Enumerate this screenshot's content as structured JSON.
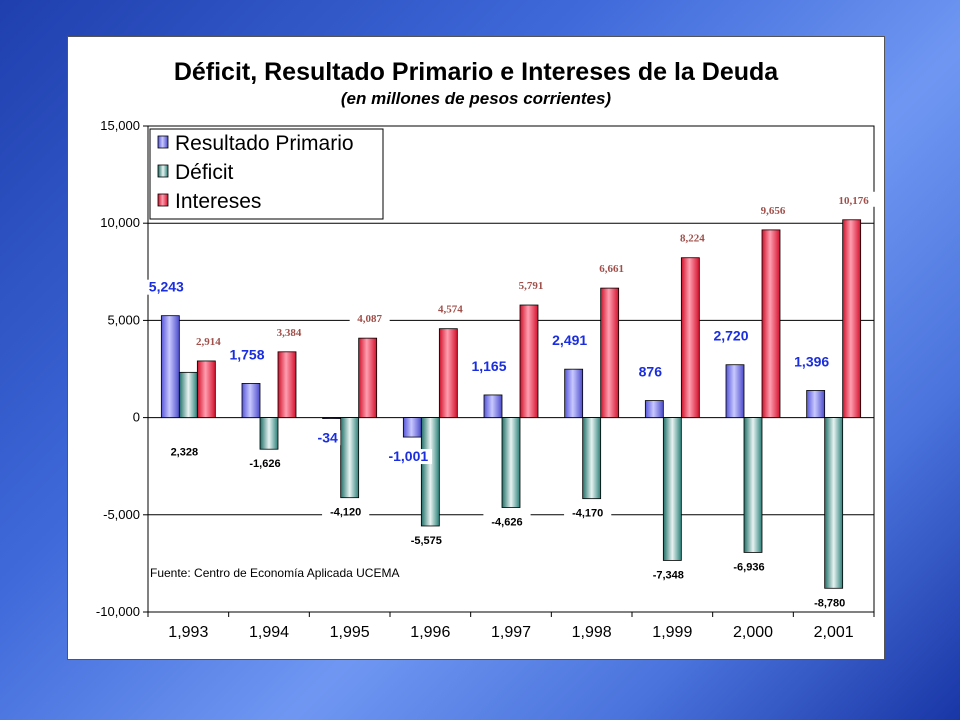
{
  "colors": {
    "resultado_primario": "#7c7cf0",
    "deficit": "#2f8f88",
    "intereses": "#ee1f3a"
  },
  "chart_data": {
    "type": "bar",
    "title": "Déficit, Resultado Primario e Intereses de la Deuda",
    "subtitle": "(en millones de pesos corrientes)",
    "categories": [
      "1,993",
      "1,994",
      "1,995",
      "1,996",
      "1,997",
      "1,998",
      "1,999",
      "2,000",
      "2,001"
    ],
    "series": [
      {
        "name": "Resultado Primario",
        "values": [
          5243,
          1758,
          -34,
          -1001,
          1165,
          2491,
          876,
          2720,
          1396
        ],
        "labels": [
          "5,243",
          "1,758",
          "-34",
          "-1,001",
          "1,165",
          "2,491",
          "876",
          "2,720",
          "1,396"
        ]
      },
      {
        "name": "Déficit",
        "values": [
          2328,
          -1626,
          -4120,
          -5575,
          -4626,
          -4170,
          -7348,
          -6936,
          -8780
        ],
        "labels": [
          "2,328",
          "-1,626",
          "-4,120",
          "-5,575",
          "-4,626",
          "-4,170",
          "-7,348",
          "-6,936",
          "-8,780"
        ]
      },
      {
        "name": "Intereses",
        "values": [
          2914,
          3384,
          4087,
          4574,
          5791,
          6661,
          8224,
          9656,
          10176
        ],
        "labels": [
          "2,914",
          "3,384",
          "4,087",
          "4,574",
          "5,791",
          "6,661",
          "8,224",
          "9,656",
          "10,176"
        ]
      }
    ],
    "ylim": [
      -10000,
      15000
    ],
    "yticks": [
      15000,
      10000,
      5000,
      0,
      -5000,
      -10000
    ],
    "ytick_labels": [
      "15,000",
      "10,000",
      "5,000",
      "0",
      "-5,000",
      "-10,000"
    ],
    "grid": true,
    "legend": "top-left",
    "source": "Fuente: Centro de Economía Aplicada UCEMA"
  }
}
